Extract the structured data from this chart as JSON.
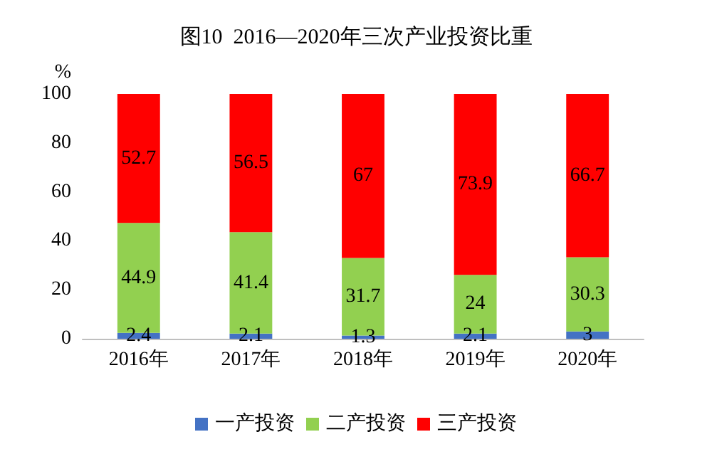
{
  "chart_data": {
    "type": "bar",
    "stacked": true,
    "title": "图10  2016—2020年三次产业投资比重",
    "ylabel": "%",
    "categories": [
      "2016年",
      "2017年",
      "2018年",
      "2019年",
      "2020年"
    ],
    "series": [
      {
        "name": "一产投资",
        "color": "#4472c4",
        "values": [
          2.4,
          2.1,
          1.3,
          2.1,
          3
        ]
      },
      {
        "name": "二产投资",
        "color": "#92d050",
        "values": [
          44.9,
          41.4,
          31.7,
          24,
          30.3
        ]
      },
      {
        "name": "三产投资",
        "color": "#ff0000",
        "values": [
          52.7,
          56.5,
          67,
          73.9,
          66.7
        ]
      }
    ],
    "ylim": [
      0,
      100
    ],
    "yticks": [
      0,
      20,
      40,
      60,
      80,
      100
    ],
    "data_labels": true,
    "legend": "bottom",
    "grid": false
  }
}
